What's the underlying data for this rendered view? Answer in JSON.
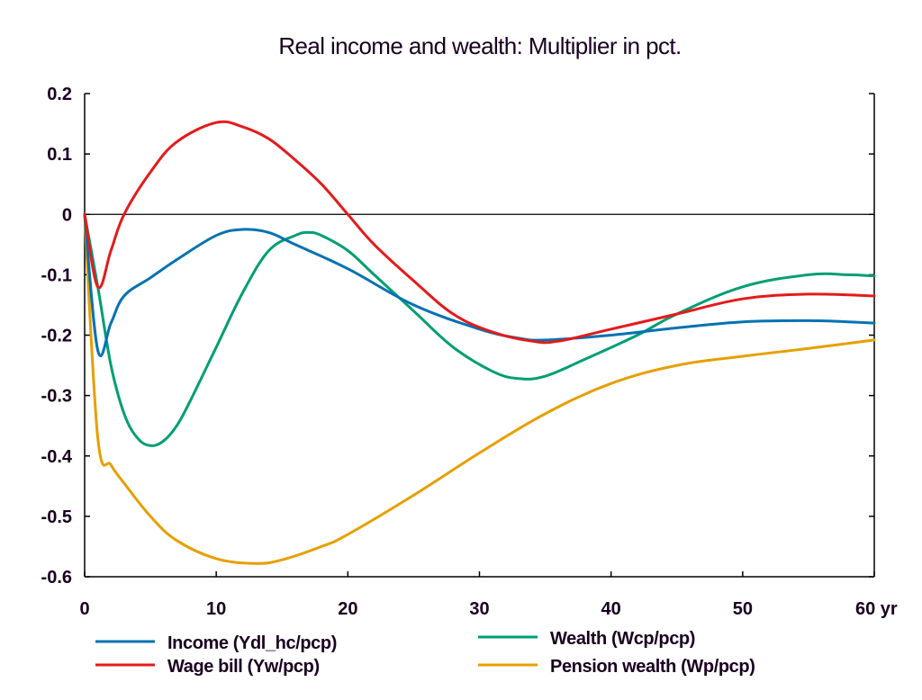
{
  "chart_data": {
    "type": "line",
    "title": "Real income and wealth: Multiplier in pct.",
    "xlabel": "",
    "ylabel": "",
    "x_unit_label": "yr",
    "xlim": [
      0,
      60
    ],
    "ylim": [
      -0.6,
      0.2
    ],
    "xticks": [
      0,
      10,
      20,
      30,
      40,
      50,
      60
    ],
    "xtick_labels": [
      "0",
      "10",
      "20",
      "30",
      "40",
      "50",
      "60 yr"
    ],
    "yticks": [
      0.2,
      0.1,
      0,
      -0.1,
      -0.2,
      -0.3,
      -0.4,
      -0.5,
      -0.6
    ],
    "ytick_labels": [
      "0.2",
      "0.1",
      "0",
      "-0.1",
      "-0.2",
      "-0.3",
      "-0.4",
      "-0.5",
      "-0.6"
    ],
    "grid": false,
    "zero_line": true,
    "legend_position": "bottom",
    "series": [
      {
        "name": "Income (Ydl_hc/pcp)",
        "color": "#0072b2",
        "x": [
          0,
          1,
          2,
          3,
          5,
          7,
          10,
          12,
          14,
          16,
          20,
          25,
          30,
          33,
          35,
          40,
          45,
          50,
          55,
          58,
          60
        ],
        "values": [
          0,
          -0.225,
          -0.18,
          -0.135,
          -0.105,
          -0.075,
          -0.035,
          -0.025,
          -0.03,
          -0.05,
          -0.09,
          -0.15,
          -0.19,
          -0.205,
          -0.208,
          -0.2,
          -0.188,
          -0.178,
          -0.176,
          -0.178,
          -0.18
        ]
      },
      {
        "name": "Wage bill (Yw/pcp)",
        "color": "#e41a1c",
        "x": [
          0,
          1,
          2,
          3,
          5,
          7,
          10,
          12,
          14,
          16,
          18,
          20,
          22,
          25,
          28,
          31,
          34,
          36,
          40,
          45,
          50,
          55,
          60
        ],
        "values": [
          0,
          -0.12,
          -0.06,
          0,
          0.07,
          0.12,
          0.152,
          0.145,
          0.125,
          0.09,
          0.05,
          0,
          -0.05,
          -0.11,
          -0.165,
          -0.195,
          -0.21,
          -0.21,
          -0.19,
          -0.165,
          -0.14,
          -0.132,
          -0.135
        ]
      },
      {
        "name": "Wealth (Wcp/pcp)",
        "color": "#009e73",
        "x": [
          0,
          1,
          2,
          3,
          4,
          5,
          6,
          7,
          8,
          10,
          12,
          14,
          16,
          17,
          18,
          20,
          22,
          25,
          28,
          31,
          33,
          35,
          38,
          42,
          45,
          50,
          55,
          58,
          60
        ],
        "values": [
          0,
          -0.12,
          -0.25,
          -0.33,
          -0.37,
          -0.383,
          -0.375,
          -0.35,
          -0.31,
          -0.22,
          -0.13,
          -0.06,
          -0.035,
          -0.03,
          -0.035,
          -0.06,
          -0.1,
          -0.16,
          -0.22,
          -0.26,
          -0.272,
          -0.268,
          -0.24,
          -0.2,
          -0.165,
          -0.12,
          -0.1,
          -0.1,
          -0.102
        ]
      },
      {
        "name": "Pension wealth (Wp/pcp)",
        "color": "#e69f00",
        "x": [
          0,
          1,
          2,
          3,
          5,
          7,
          10,
          13,
          15,
          18,
          20,
          25,
          30,
          35,
          40,
          45,
          50,
          55,
          60
        ],
        "values": [
          0,
          -0.37,
          -0.415,
          -0.445,
          -0.5,
          -0.54,
          -0.57,
          -0.578,
          -0.572,
          -0.55,
          -0.53,
          -0.465,
          -0.395,
          -0.33,
          -0.28,
          -0.25,
          -0.235,
          -0.222,
          -0.208
        ]
      }
    ],
    "legend": [
      {
        "label": "Income (Ydl_hc/pcp)",
        "color": "#0072b2"
      },
      {
        "label": "Wage bill (Yw/pcp)",
        "color": "#e41a1c"
      },
      {
        "label": "Wealth (Wcp/pcp)",
        "color": "#009e73"
      },
      {
        "label": "Pension wealth (Wp/pcp)",
        "color": "#e69f00"
      }
    ]
  }
}
